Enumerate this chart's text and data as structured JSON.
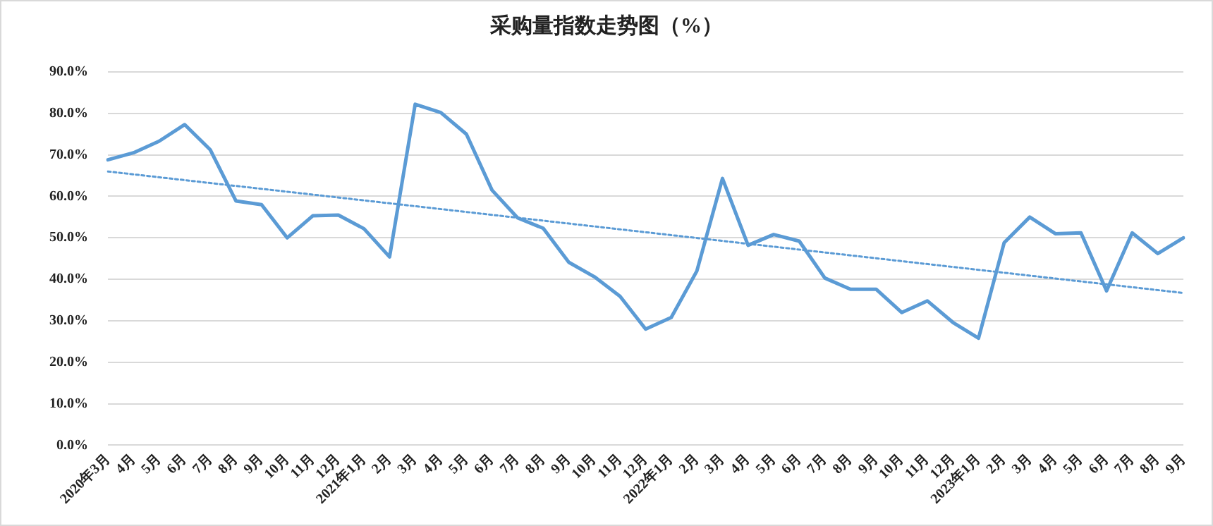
{
  "chart_data": {
    "type": "line",
    "title": "采购量指数走势图（%）",
    "categories": [
      "2020年3月",
      "4月",
      "5月",
      "6月",
      "7月",
      "8月",
      "9月",
      "10月",
      "11月",
      "12月",
      "2021年1月",
      "2月",
      "3月",
      "4月",
      "5月",
      "6月",
      "7月",
      "8月",
      "9月",
      "10月",
      "11月",
      "12月",
      "2022年1月",
      "2月",
      "3月",
      "4月",
      "5月",
      "6月",
      "7月",
      "8月",
      "9月",
      "10月",
      "11月",
      "12月",
      "2023年1月",
      "2月",
      "3月",
      "4月",
      "5月",
      "6月",
      "7月",
      "8月",
      "9月"
    ],
    "series": [
      {
        "color": "#5b9bd5",
        "line_style": "solid",
        "values": [
          68.8,
          70.5,
          73.3,
          77.3,
          71.2,
          58.9,
          58.0,
          50.0,
          55.3,
          55.5,
          52.2,
          45.4,
          82.2,
          80.2,
          75.0,
          61.5,
          54.8,
          52.3,
          44.1,
          40.6,
          35.9,
          28.0,
          30.8,
          42.0,
          64.3,
          48.2,
          50.8,
          49.2,
          40.3,
          37.6,
          37.6,
          32.0,
          34.8,
          29.6,
          25.8,
          48.8,
          55.0,
          51.0,
          51.2,
          37.2,
          51.2,
          46.2,
          50.0
        ]
      },
      {
        "type": "line",
        "color": "#5b9bd5",
        "line_style": "dotted",
        "values": [
          66.0,
          null,
          null,
          null,
          null,
          null,
          null,
          null,
          null,
          null,
          null,
          null,
          null,
          null,
          null,
          null,
          null,
          null,
          null,
          null,
          null,
          null,
          null,
          null,
          null,
          null,
          null,
          null,
          null,
          null,
          null,
          null,
          null,
          null,
          null,
          null,
          null,
          null,
          null,
          null,
          null,
          null,
          36.7
        ]
      }
    ],
    "ylim": [
      0,
      90
    ],
    "yticks": [
      {
        "value": 0,
        "label": "0.0%"
      },
      {
        "value": 10,
        "label": "10.0%"
      },
      {
        "value": 20,
        "label": "20.0%"
      },
      {
        "value": 30,
        "label": "30.0%"
      },
      {
        "value": 40,
        "label": "40.0%"
      },
      {
        "value": 50,
        "label": "50.0%"
      },
      {
        "value": 60,
        "label": "60.0%"
      },
      {
        "value": 70,
        "label": "70.0%"
      },
      {
        "value": 80,
        "label": "80.0%"
      },
      {
        "value": 90,
        "label": "90.0%"
      }
    ],
    "grid": "y",
    "legend": false,
    "marker": "none"
  }
}
